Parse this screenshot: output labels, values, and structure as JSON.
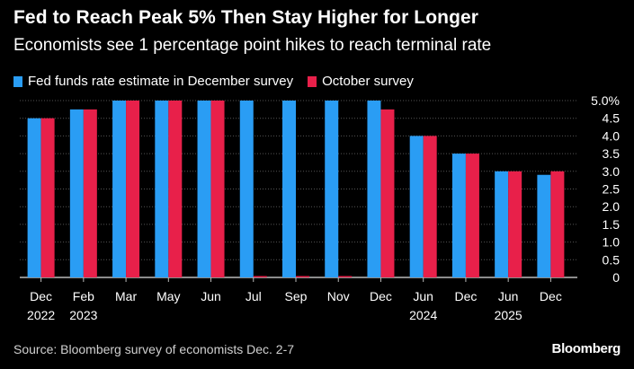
{
  "chart_data": {
    "type": "bar",
    "title": "Fed to Reach Peak 5% Then Stay Higher for Longer",
    "subtitle": "Economists see 1 percentage point hikes to reach terminal rate",
    "categories": [
      {
        "month": "Dec",
        "year": "2022"
      },
      {
        "month": "Feb",
        "year": "2023"
      },
      {
        "month": "Mar",
        "year": ""
      },
      {
        "month": "May",
        "year": ""
      },
      {
        "month": "Jun",
        "year": ""
      },
      {
        "month": "Jul",
        "year": ""
      },
      {
        "month": "Sep",
        "year": ""
      },
      {
        "month": "Nov",
        "year": ""
      },
      {
        "month": "Dec",
        "year": ""
      },
      {
        "month": "Jun",
        "year": "2024"
      },
      {
        "month": "Dec",
        "year": ""
      },
      {
        "month": "Jun",
        "year": "2025"
      },
      {
        "month": "Dec",
        "year": ""
      }
    ],
    "series": [
      {
        "name": "Fed funds rate estimate in December survey",
        "color": "#2a9df4",
        "values": [
          4.5,
          4.75,
          5.0,
          5.0,
          5.0,
          5.0,
          5.0,
          5.0,
          5.0,
          4.0,
          3.5,
          3.0,
          2.9
        ]
      },
      {
        "name": "October survey",
        "color": "#e8204a",
        "values": [
          4.5,
          4.75,
          5.0,
          5.0,
          5.0,
          null,
          null,
          null,
          4.75,
          4.0,
          3.5,
          3.0,
          3.0
        ]
      }
    ],
    "y_ticks": [
      "5.0%",
      "4.5",
      "4.0",
      "3.5",
      "3.0",
      "2.5",
      "2.0",
      "1.5",
      "1.0",
      "0.5",
      "0"
    ],
    "y_tick_values": [
      5.0,
      4.5,
      4.0,
      3.5,
      3.0,
      2.5,
      2.0,
      1.5,
      1.0,
      0.5,
      0
    ],
    "ylim": [
      0,
      5.0
    ],
    "y_axis_side": "right",
    "grid": true,
    "legend_position": "top-left"
  },
  "source": "Source: Bloomberg survey of economists Dec. 2-7",
  "brand": "Bloomberg"
}
